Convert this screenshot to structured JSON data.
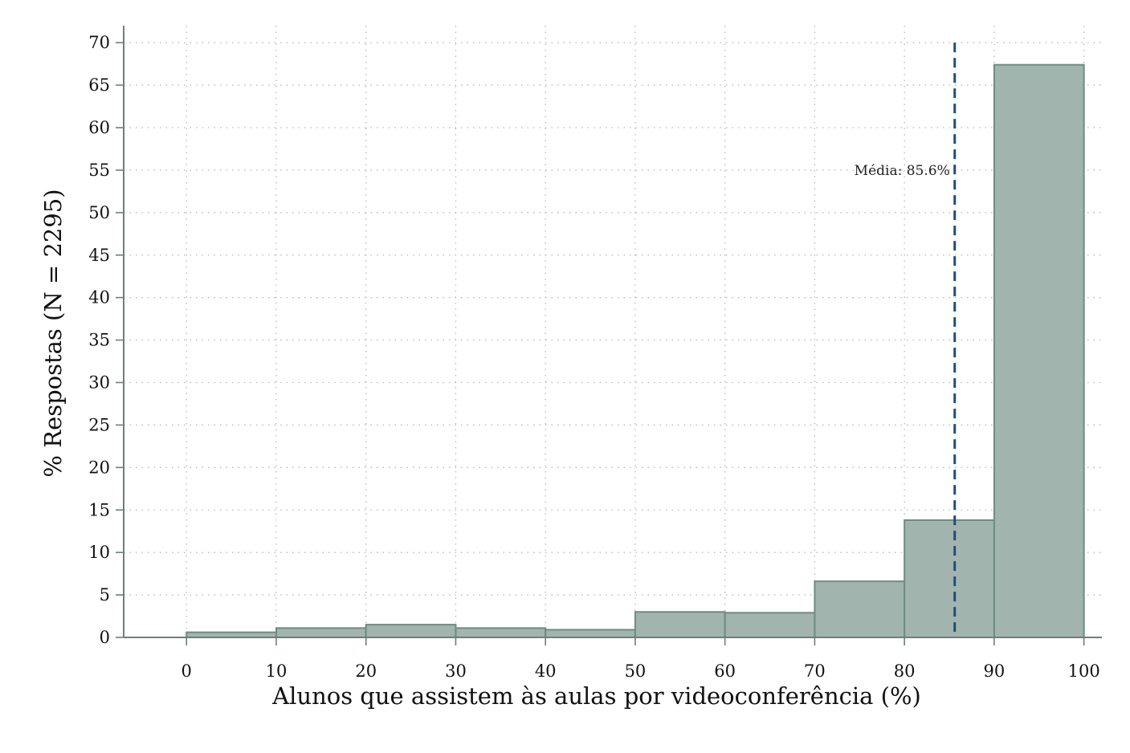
{
  "chart_data": {
    "type": "bar",
    "subtype": "histogram",
    "xlabel": "Alunos que assistem às aulas por videoconferência (%)",
    "ylabel": "% Respostas (N = 2295)",
    "x_ticks": [
      0,
      10,
      20,
      30,
      40,
      50,
      60,
      70,
      80,
      90,
      100
    ],
    "y_ticks": [
      0,
      5,
      10,
      15,
      20,
      25,
      30,
      35,
      40,
      45,
      50,
      55,
      60,
      65,
      70
    ],
    "xlim": [
      -7,
      102
    ],
    "ylim": [
      0,
      72
    ],
    "bins": [
      {
        "start": 0,
        "end": 10,
        "value": 0.6
      },
      {
        "start": 10,
        "end": 20,
        "value": 1.1
      },
      {
        "start": 20,
        "end": 30,
        "value": 1.5
      },
      {
        "start": 30,
        "end": 40,
        "value": 1.1
      },
      {
        "start": 40,
        "end": 50,
        "value": 0.9
      },
      {
        "start": 50,
        "end": 60,
        "value": 3.0
      },
      {
        "start": 60,
        "end": 70,
        "value": 2.9
      },
      {
        "start": 70,
        "end": 80,
        "value": 6.6
      },
      {
        "start": 80,
        "end": 90,
        "value": 13.8
      },
      {
        "start": 90,
        "end": 100,
        "value": 67.4
      }
    ],
    "mean": {
      "value": 85.6,
      "label": "Média: 85.6%"
    },
    "grid": true,
    "colors": {
      "bar_fill": "#a1b5ae",
      "bar_stroke": "#6f8b82",
      "mean_line": "#1f4e79",
      "grid": "#b8b8b8",
      "axis": "#6e7f7a"
    }
  }
}
